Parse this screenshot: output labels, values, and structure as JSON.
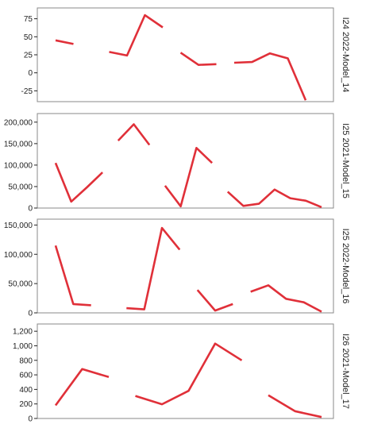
{
  "chart_data": [
    {
      "type": "line",
      "panel_label": "I24 2022-Model_14",
      "yticks": [
        -25,
        0,
        25,
        50,
        75
      ],
      "ytick_labels": [
        "-25",
        "0",
        "25",
        "50",
        "75"
      ],
      "ylim": [
        -40,
        90
      ],
      "color": "#e03039",
      "segments": [
        [
          [
            0,
            45
          ],
          [
            1,
            40
          ]
        ],
        [
          [
            3,
            29
          ],
          [
            4,
            24
          ],
          [
            5,
            80
          ],
          [
            6,
            63
          ]
        ],
        [
          [
            7,
            28
          ],
          [
            8,
            11
          ],
          [
            9,
            12
          ]
        ],
        [
          [
            10,
            14
          ],
          [
            11,
            15
          ],
          [
            12,
            27
          ],
          [
            13,
            20
          ],
          [
            14,
            -38
          ]
        ]
      ]
    },
    {
      "type": "line",
      "panel_label": "I25 2021-Model_15",
      "yticks": [
        0,
        50000,
        100000,
        150000,
        200000
      ],
      "ytick_labels": [
        "0",
        "50,000",
        "100,000",
        "150,000",
        "200,000"
      ],
      "ylim": [
        0,
        220000
      ],
      "color": "#e03039",
      "segments": [
        [
          [
            0,
            105000
          ],
          [
            1,
            15000
          ],
          [
            2,
            48000
          ],
          [
            3,
            83000
          ]
        ],
        [
          [
            4,
            157000
          ],
          [
            5,
            195000
          ],
          [
            6,
            147000
          ]
        ],
        [
          [
            7,
            52000
          ],
          [
            8,
            4000
          ],
          [
            9,
            140000
          ],
          [
            10,
            105000
          ]
        ],
        [
          [
            11,
            38000
          ],
          [
            12,
            5000
          ],
          [
            13,
            10000
          ],
          [
            14,
            43000
          ],
          [
            15,
            23000
          ],
          [
            16,
            17000
          ],
          [
            17,
            2000
          ]
        ]
      ]
    },
    {
      "type": "line",
      "panel_label": "I25 2022-Model_16",
      "yticks": [
        0,
        50000,
        100000,
        150000
      ],
      "ytick_labels": [
        "0",
        "50,000",
        "100,000",
        "150,000"
      ],
      "ylim": [
        0,
        160000
      ],
      "color": "#e03039",
      "segments": [
        [
          [
            0,
            115000
          ],
          [
            1,
            15000
          ],
          [
            2,
            13000
          ]
        ],
        [
          [
            4,
            8000
          ],
          [
            5,
            6000
          ],
          [
            6,
            145000
          ],
          [
            7,
            108000
          ]
        ],
        [
          [
            8,
            39000
          ],
          [
            9,
            4000
          ],
          [
            10,
            15000
          ]
        ],
        [
          [
            11,
            36000
          ],
          [
            12,
            47000
          ],
          [
            13,
            24000
          ],
          [
            14,
            18000
          ],
          [
            15,
            2000
          ]
        ]
      ]
    },
    {
      "type": "line",
      "panel_label": "I26 2021-Model_17",
      "yticks": [
        0,
        200,
        400,
        600,
        800,
        1000,
        1200
      ],
      "ytick_labels": [
        "0",
        "200",
        "400",
        "600",
        "800",
        "1,000",
        "1,200"
      ],
      "ylim": [
        0,
        1300
      ],
      "color": "#e03039",
      "segments": [
        [
          [
            0,
            180
          ],
          [
            1,
            680
          ],
          [
            2,
            570
          ]
        ],
        [
          [
            3,
            310
          ],
          [
            4,
            195
          ],
          [
            5,
            380
          ],
          [
            6,
            1030
          ],
          [
            7,
            800
          ]
        ],
        [
          [
            8,
            320
          ],
          [
            9,
            100
          ],
          [
            10,
            20
          ]
        ]
      ]
    }
  ]
}
